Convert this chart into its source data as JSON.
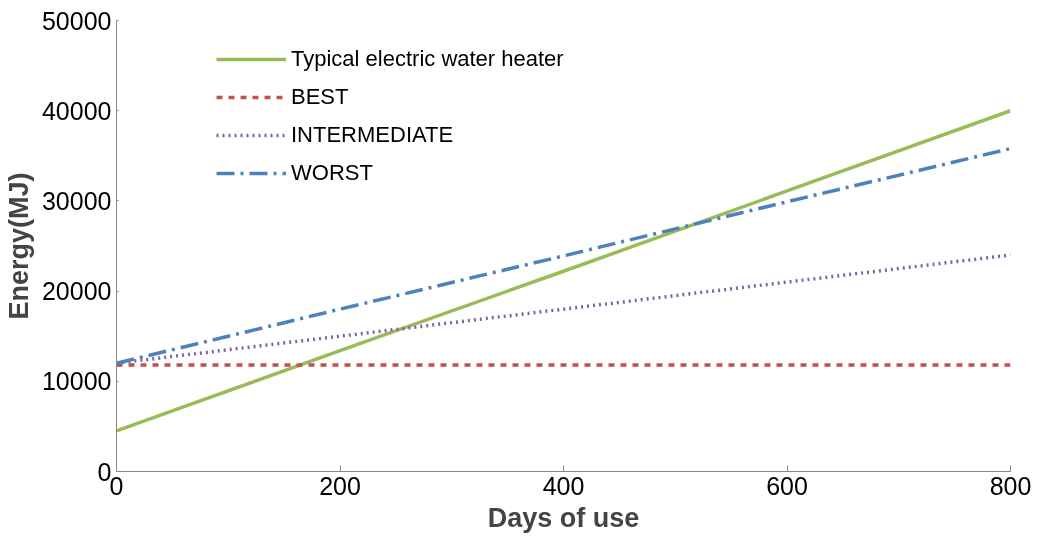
{
  "chart_data": {
    "type": "line",
    "xlabel": "Days of use",
    "ylabel": "Energy(MJ)",
    "xlim": [
      0,
      800
    ],
    "ylim": [
      0,
      50000
    ],
    "xticks": [
      0,
      200,
      400,
      600,
      800
    ],
    "yticks": [
      0,
      10000,
      20000,
      30000,
      40000,
      50000
    ],
    "grid": false,
    "legend": "top left",
    "x": [
      0,
      200,
      400,
      600,
      800
    ],
    "series": [
      {
        "name": "Typical electric water heater",
        "color": "#9bbb59",
        "line_style": "solid",
        "values": [
          4500,
          13400,
          22200,
          31100,
          40000
        ]
      },
      {
        "name": "BEST",
        "color": "#c0504d",
        "line_style": "dashed",
        "values": [
          11800,
          11800,
          11800,
          11800,
          11800
        ]
      },
      {
        "name": "INTERMEDIATE",
        "color": "#8064a2",
        "line_style": "dotted",
        "values": [
          12000,
          15000,
          18000,
          21000,
          24000
        ]
      },
      {
        "name": "WORST",
        "color": "#4f81bd",
        "line_style": "dashdot",
        "values": [
          12000,
          18000,
          23900,
          29900,
          35800
        ]
      }
    ]
  }
}
